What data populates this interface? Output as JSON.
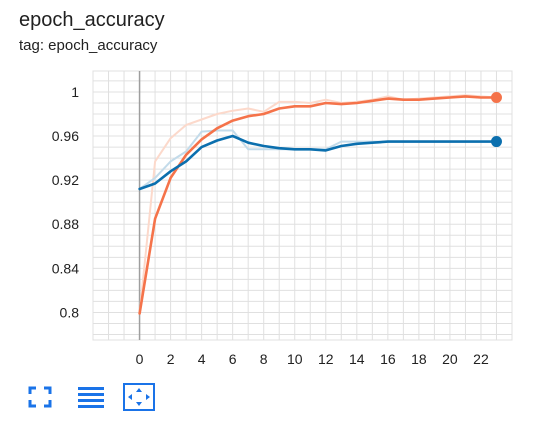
{
  "card": {
    "title": "epoch_accuracy",
    "subtitle": "tag: epoch_accuracy"
  },
  "toolbar": {
    "icons": [
      "fullscreen-icon",
      "list-icon",
      "fit-domain-icon"
    ]
  },
  "colors": {
    "orange": "#f5734a",
    "orange_raw": "#fcd9cb",
    "blue": "#0b6fae",
    "blue_raw": "#c3dbea",
    "grid": "#e0e0e0",
    "axis": "#9e9e9e",
    "text": "#212121",
    "icon": "#1a73e8"
  },
  "chart_data": {
    "type": "line",
    "title": "",
    "xlabel": "",
    "ylabel": "",
    "xlim": [
      -3,
      24
    ],
    "ylim": [
      0.775,
      1.019
    ],
    "x_ticks": [
      0,
      2,
      4,
      6,
      8,
      10,
      12,
      14,
      16,
      18,
      20,
      22
    ],
    "y_ticks": [
      0.8,
      0.84,
      0.88,
      0.92,
      0.96,
      1
    ],
    "y_tick_labels": [
      "0.8",
      "0.84",
      "0.88",
      "0.92",
      "0.96",
      "1"
    ],
    "x_minor_step": 1,
    "grid": true,
    "series": [
      {
        "color": "#f5734a",
        "raw_color": "#fcd9cb",
        "x": [
          0,
          1,
          2,
          3,
          4,
          5,
          6,
          7,
          8,
          9,
          10,
          11,
          12,
          13,
          14,
          15,
          16,
          17,
          18,
          19,
          20,
          21,
          22,
          23
        ],
        "smoothed": [
          0.799,
          0.885,
          0.922,
          0.943,
          0.957,
          0.967,
          0.974,
          0.978,
          0.98,
          0.985,
          0.987,
          0.987,
          0.99,
          0.989,
          0.99,
          0.992,
          0.994,
          0.993,
          0.993,
          0.994,
          0.995,
          0.996,
          0.995,
          0.995
        ],
        "raw": [
          0.799,
          0.937,
          0.958,
          0.97,
          0.975,
          0.98,
          0.983,
          0.985,
          0.982,
          0.991,
          0.991,
          0.99,
          0.993,
          0.99,
          0.991,
          0.993,
          0.996,
          0.993,
          0.994,
          0.995,
          0.996,
          0.997,
          0.996,
          0.995
        ]
      },
      {
        "color": "#0b6fae",
        "raw_color": "#c3dbea",
        "x": [
          0,
          1,
          2,
          3,
          4,
          5,
          6,
          7,
          8,
          9,
          10,
          11,
          12,
          13,
          14,
          15,
          16,
          17,
          18,
          19,
          20,
          21,
          22,
          23
        ],
        "smoothed": [
          0.912,
          0.917,
          0.928,
          0.937,
          0.95,
          0.956,
          0.96,
          0.954,
          0.951,
          0.949,
          0.948,
          0.948,
          0.947,
          0.951,
          0.953,
          0.954,
          0.955,
          0.955,
          0.955,
          0.955,
          0.955,
          0.955,
          0.955,
          0.955
        ],
        "raw": [
          0.912,
          0.922,
          0.937,
          0.946,
          0.964,
          0.965,
          0.965,
          0.948,
          0.948,
          0.948,
          0.948,
          0.948,
          0.948,
          0.955,
          0.955,
          0.955,
          0.955,
          0.955,
          0.955,
          0.955,
          0.955,
          0.955,
          0.955,
          0.955
        ]
      }
    ]
  }
}
